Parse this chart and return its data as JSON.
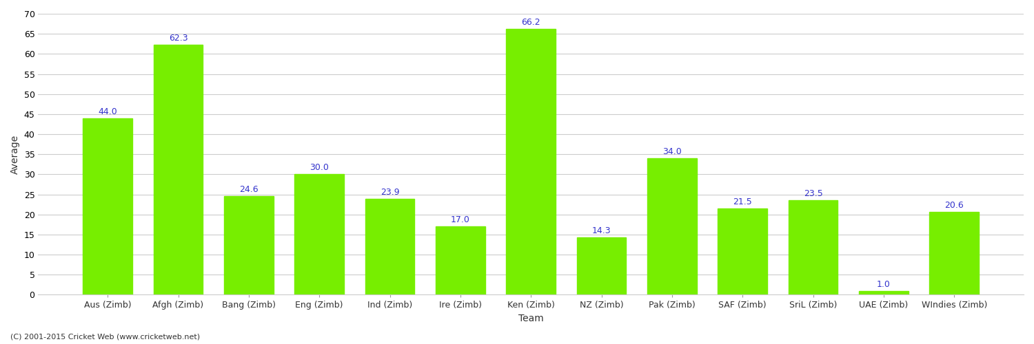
{
  "categories": [
    "Aus (Zimb)",
    "Afgh (Zimb)",
    "Bang (Zimb)",
    "Eng (Zimb)",
    "Ind (Zimb)",
    "Ire (Zimb)",
    "Ken (Zimb)",
    "NZ (Zimb)",
    "Pak (Zimb)",
    "SAF (Zimb)",
    "SriL (Zimb)",
    "UAE (Zimb)",
    "WIndies (Zimb)"
  ],
  "values": [
    44.0,
    62.3,
    24.6,
    30.0,
    23.9,
    17.0,
    66.2,
    14.3,
    34.0,
    21.5,
    23.5,
    1.0,
    20.6
  ],
  "bar_color": "#77ee00",
  "bar_edge_color": "#77ee00",
  "label_color": "#3333cc",
  "label_fontsize": 9,
  "xlabel": "Team",
  "ylabel": "Average",
  "ylabel_fontsize": 10,
  "xlabel_fontsize": 10,
  "ylim": [
    0,
    70
  ],
  "yticks": [
    0,
    5,
    10,
    15,
    20,
    25,
    30,
    35,
    40,
    45,
    50,
    55,
    60,
    65,
    70
  ],
  "grid_color": "#cccccc",
  "bg_color": "#ffffff",
  "plot_bg_color": "#ffffff",
  "footer_text": "(C) 2001-2015 Cricket Web (www.cricketweb.net)",
  "footer_fontsize": 8,
  "footer_color": "#333333",
  "bar_width": 0.7
}
